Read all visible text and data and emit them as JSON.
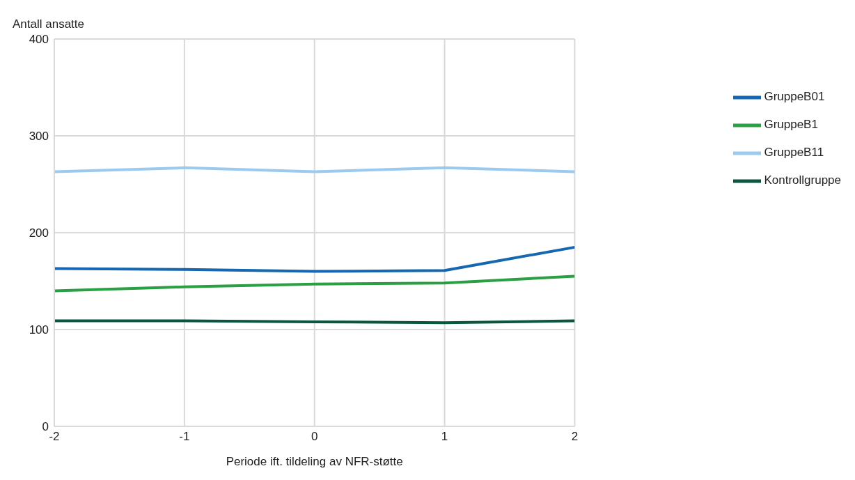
{
  "chart_data": {
    "type": "line",
    "xlabel": "Periode ift. tildeling av NFR-støtte",
    "ylabel": "Antall ansatte",
    "x": [
      -2,
      -1,
      0,
      1,
      2
    ],
    "xlim": [
      -2,
      2
    ],
    "xticks": [
      -2,
      -1,
      0,
      1,
      2
    ],
    "ylim": [
      0,
      400
    ],
    "yticks": [
      0,
      100,
      200,
      300,
      400
    ],
    "grid": true,
    "legend": "right",
    "marker": "none",
    "line_style": "solid",
    "series": [
      {
        "name": "Kontrollgruppe",
        "color": "#0b5640",
        "values": [
          109,
          109,
          108,
          107,
          109
        ]
      },
      {
        "name": "GruppeB1",
        "color": "#2a9f43",
        "values": [
          140,
          144,
          147,
          148,
          155
        ]
      },
      {
        "name": "GruppeB11",
        "color": "#9ccaee",
        "values": [
          263,
          267,
          263,
          267,
          263
        ]
      },
      {
        "name": "GruppeB01",
        "color": "#1467b0",
        "values": [
          163,
          162,
          160,
          161,
          185
        ]
      }
    ]
  }
}
